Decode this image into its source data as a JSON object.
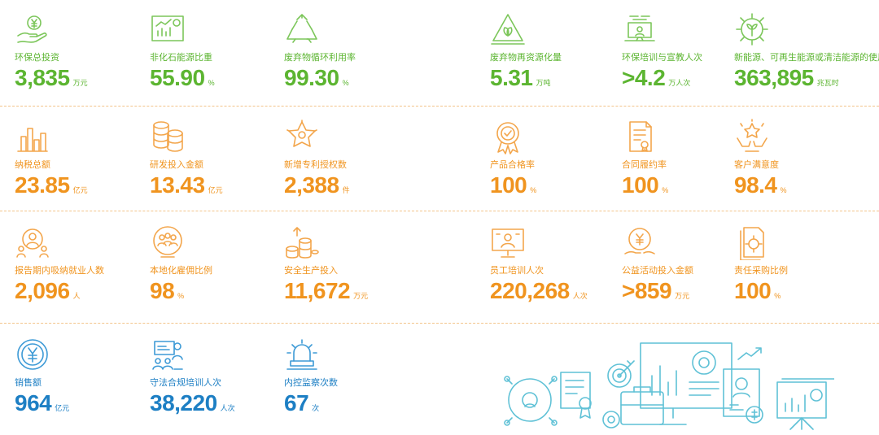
{
  "rows": [
    [
      {
        "label": "环保总投资",
        "value": "3,835",
        "unit": "万元",
        "icon": "hand-yen-icon"
      },
      {
        "label": "非化石能源比重",
        "value": "55.90",
        "unit": "%",
        "icon": "bar-chart-board-icon"
      },
      {
        "label": "废弃物循环利用率",
        "value": "99.30",
        "unit": "%",
        "icon": "recycle-icon"
      },
      {
        "label": "废弃物再资源化量",
        "value": "5.31",
        "unit": "万吨",
        "icon": "recycle-triangle-leaf-icon"
      },
      {
        "label": "环保培训与宣教人次",
        "value": ">4.2",
        "unit": "万人次",
        "icon": "training-laptop-icon"
      },
      {
        "label": "新能源、可再生能源或清洁能源的使用量",
        "value": "363,895",
        "unit": "兆瓦时",
        "icon": "gear-leaf-icon"
      }
    ],
    [
      {
        "label": "纳税总额",
        "value": "23.85",
        "unit": "亿元",
        "icon": "bar-chart-icon"
      },
      {
        "label": "研发投入金额",
        "value": "13.43",
        "unit": "亿元",
        "icon": "coin-stacks-icon"
      },
      {
        "label": "新增专利授权数",
        "value": "2,388",
        "unit": "件",
        "icon": "star-badge-icon"
      },
      {
        "label": "产品合格率",
        "value": "100",
        "unit": "%",
        "icon": "quality-medal-icon"
      },
      {
        "label": "合同履约率",
        "value": "100",
        "unit": "%",
        "icon": "contract-document-icon"
      },
      {
        "label": "客户满意度",
        "value": "98.4",
        "unit": "%",
        "icon": "hands-star-icon"
      }
    ],
    [
      {
        "label": "报告期内吸纳就业人数",
        "value": "2,096",
        "unit": "人",
        "icon": "people-group-icon"
      },
      {
        "label": "本地化雇佣比例",
        "value": "98",
        "unit": "%",
        "icon": "local-employees-icon"
      },
      {
        "label": "安全生产投入",
        "value": "11,672",
        "unit": "万元",
        "icon": "coins-arrow-icon"
      },
      {
        "label": "员工培训人次",
        "value": "220,268",
        "unit": "人次",
        "icon": "presentation-screen-icon"
      },
      {
        "label": "公益活动投入金额",
        "value": ">859",
        "unit": "万元",
        "icon": "charity-yen-icon"
      },
      {
        "label": "责任采购比例",
        "value": "100",
        "unit": "%",
        "icon": "procurement-document-icon"
      }
    ],
    [
      {
        "label": "销售额",
        "value": "964",
        "unit": "亿元",
        "icon": "yen-coin-icon"
      },
      {
        "label": "守法合规培训人次",
        "value": "38,220",
        "unit": "人次",
        "icon": "compliance-training-icon"
      },
      {
        "label": "内控监察次数",
        "value": "67",
        "unit": "次",
        "icon": "alarm-bell-icon"
      }
    ]
  ],
  "colors": {
    "row1": "#5cb531",
    "row2": "#f0941f",
    "row3": "#f0941f",
    "row4": "#1d7fc4",
    "illustration": "#5fc1d6"
  }
}
